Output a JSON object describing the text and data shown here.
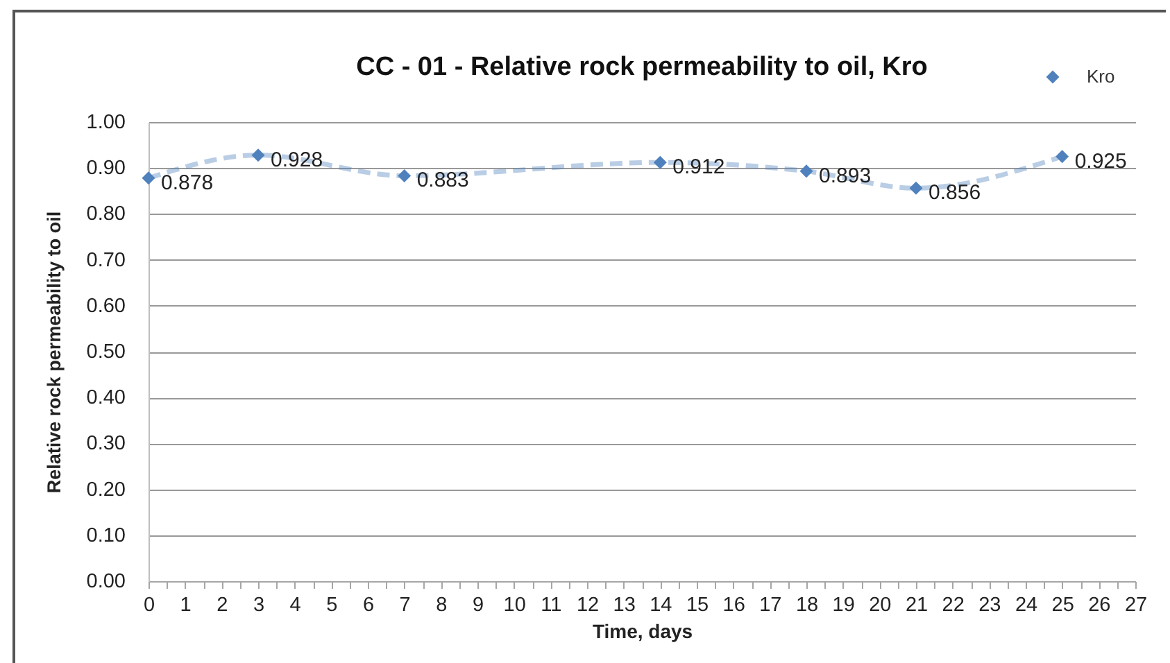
{
  "chart_data": {
    "type": "line",
    "title": "CC - 01 - Relative rock permeability to oil, Kro",
    "xlabel": "Time, days",
    "ylabel": "Relative rock permeability to oil",
    "x": [
      0,
      3,
      7,
      14,
      18,
      21,
      25
    ],
    "series": [
      {
        "name": "Kro",
        "color": "#4f81bd",
        "values": [
          0.878,
          0.928,
          0.883,
          0.912,
          0.893,
          0.856,
          0.925
        ]
      }
    ],
    "xlim": [
      0,
      27
    ],
    "xticks": [
      0,
      {
        "value": 0.5,
        "label": null
      },
      1,
      {
        "value": 1.5,
        "label": null
      },
      2,
      {
        "value": 2.5,
        "label": null
      },
      3,
      {
        "value": 3.5,
        "label": null
      },
      4,
      {
        "value": 4.5,
        "label": null
      },
      5,
      {
        "value": 5.5,
        "label": null
      },
      6,
      {
        "value": 6.5,
        "label": null
      },
      7,
      {
        "value": 7.5,
        "label": null
      },
      8,
      {
        "value": 8.5,
        "label": null
      },
      9,
      {
        "value": 9.5,
        "label": null
      },
      10,
      {
        "value": 10.5,
        "label": null
      },
      11,
      {
        "value": 11.5,
        "label": null
      },
      12,
      {
        "value": 12.5,
        "label": null
      },
      13,
      {
        "value": 13.5,
        "label": null
      },
      14,
      {
        "value": 14.5,
        "label": null
      },
      15,
      {
        "value": 15.5,
        "label": null
      },
      16,
      {
        "value": 16.5,
        "label": null
      },
      17,
      {
        "value": 17.5,
        "label": null
      },
      18,
      {
        "value": 18.5,
        "label": null
      },
      19,
      {
        "value": 19.5,
        "label": null
      },
      20,
      {
        "value": 20.5,
        "label": null
      },
      21,
      {
        "value": 21.5,
        "label": null
      },
      22,
      {
        "value": 22.5,
        "label": null
      },
      23,
      {
        "value": 23.5,
        "label": null
      },
      24,
      {
        "value": 24.5,
        "label": null
      },
      25,
      {
        "value": 25.5,
        "label": null
      },
      26,
      {
        "value": 26.5,
        "label": null
      },
      27
    ],
    "ylim": [
      0,
      1
    ],
    "yticks": [
      {
        "value": 0,
        "label": "0.00"
      },
      {
        "value": 0.1,
        "label": "0.10"
      },
      {
        "value": 0.2,
        "label": "0.20"
      },
      {
        "value": 0.3,
        "label": "0.30"
      },
      {
        "value": 0.4,
        "label": "0.40"
      },
      {
        "value": 0.5,
        "label": "0.50"
      },
      {
        "value": 0.6,
        "label": "0.60"
      },
      {
        "value": 0.7,
        "label": "0.70"
      },
      {
        "value": 0.8,
        "label": "0.80"
      },
      {
        "value": 0.9,
        "label": "0.90"
      },
      {
        "value": 1,
        "label": "1.00"
      }
    ],
    "grid": "y",
    "legend": "top right",
    "marker": "diamond",
    "line_style": "dashed",
    "data_labels": true
  }
}
